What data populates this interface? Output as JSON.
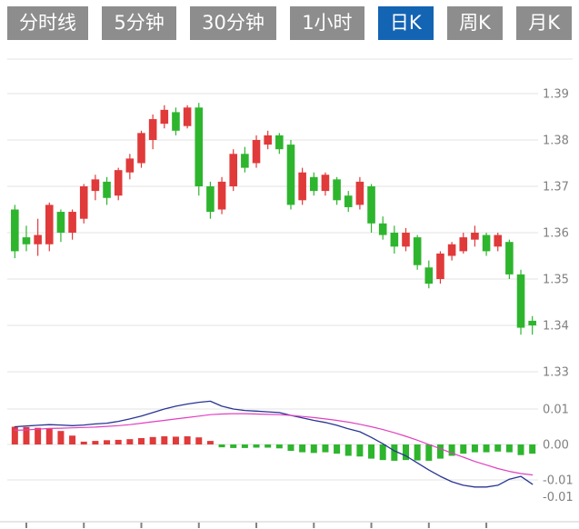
{
  "tabs": {
    "active_index": 4,
    "items": [
      {
        "label": "分时线"
      },
      {
        "label": "5分钟"
      },
      {
        "label": "30分钟"
      },
      {
        "label": "1小时"
      },
      {
        "label": "日K"
      },
      {
        "label": "周K"
      },
      {
        "label": "月K"
      }
    ]
  },
  "colors": {
    "tab_bg": "#8d8d8d",
    "tab_active_bg": "#1464b4",
    "tab_text": "#ffffff",
    "up_candle": "#e03a3a",
    "down_candle": "#2eb52e",
    "dif_line": "#283593",
    "dea_line": "#e040c0",
    "grid_line": "#e3e3e3",
    "axis_line": "#cccccc",
    "axis_text": "#808080",
    "background": "#ffffff"
  },
  "chart_data": {
    "type": "candlestick",
    "title": "",
    "legend": [],
    "layout": {
      "grid": true,
      "price_axis_side": "right",
      "indicator_panel": "MACD"
    },
    "price_axis": {
      "labels": [
        "1.39",
        "1.38",
        "1.37",
        "1.36",
        "1.35",
        "1.34",
        "1.33"
      ],
      "min": 1.33,
      "max": 1.39,
      "step": 0.01
    },
    "candles_ohlc_note": "each entry is [open, high, low, close]; red = close above open, green = close below open",
    "candles": [
      [
        1.365,
        1.366,
        1.3545,
        1.356
      ],
      [
        1.359,
        1.3615,
        1.356,
        1.3575
      ],
      [
        1.3575,
        1.363,
        1.355,
        1.3595
      ],
      [
        1.3575,
        1.3665,
        1.356,
        1.366
      ],
      [
        1.3645,
        1.365,
        1.358,
        1.36
      ],
      [
        1.36,
        1.365,
        1.3585,
        1.3645
      ],
      [
        1.363,
        1.3705,
        1.362,
        1.37
      ],
      [
        1.369,
        1.3725,
        1.367,
        1.3715
      ],
      [
        1.371,
        1.372,
        1.366,
        1.3675
      ],
      [
        1.368,
        1.374,
        1.367,
        1.3735
      ],
      [
        1.373,
        1.377,
        1.3715,
        1.376
      ],
      [
        1.375,
        1.382,
        1.374,
        1.3815
      ],
      [
        1.38,
        1.3855,
        1.378,
        1.3845
      ],
      [
        1.3835,
        1.3875,
        1.3825,
        1.3865
      ],
      [
        1.386,
        1.387,
        1.381,
        1.382
      ],
      [
        1.383,
        1.3875,
        1.3825,
        1.387
      ],
      [
        1.387,
        1.388,
        1.368,
        1.37
      ],
      [
        1.37,
        1.371,
        1.363,
        1.3645
      ],
      [
        1.365,
        1.372,
        1.364,
        1.371
      ],
      [
        1.37,
        1.378,
        1.369,
        1.377
      ],
      [
        1.377,
        1.3785,
        1.373,
        1.374
      ],
      [
        1.375,
        1.381,
        1.374,
        1.38
      ],
      [
        1.379,
        1.382,
        1.378,
        1.381
      ],
      [
        1.381,
        1.3815,
        1.377,
        1.378
      ],
      [
        1.379,
        1.38,
        1.365,
        1.366
      ],
      [
        1.367,
        1.374,
        1.366,
        1.373
      ],
      [
        1.372,
        1.373,
        1.368,
        1.369
      ],
      [
        1.369,
        1.373,
        1.368,
        1.3725
      ],
      [
        1.3715,
        1.372,
        1.366,
        1.367
      ],
      [
        1.368,
        1.369,
        1.3645,
        1.3655
      ],
      [
        1.366,
        1.372,
        1.365,
        1.371
      ],
      [
        1.37,
        1.3705,
        1.36,
        1.362
      ],
      [
        1.362,
        1.3635,
        1.3585,
        1.3595
      ],
      [
        1.36,
        1.3615,
        1.3555,
        1.357
      ],
      [
        1.357,
        1.361,
        1.356,
        1.36
      ],
      [
        1.359,
        1.3595,
        1.352,
        1.353
      ],
      [
        1.3525,
        1.354,
        1.348,
        1.349
      ],
      [
        1.35,
        1.356,
        1.349,
        1.3555
      ],
      [
        1.355,
        1.358,
        1.354,
        1.3575
      ],
      [
        1.356,
        1.36,
        1.3555,
        1.359
      ],
      [
        1.3585,
        1.3615,
        1.357,
        1.36
      ],
      [
        1.3595,
        1.36,
        1.355,
        1.356
      ],
      [
        1.357,
        1.36,
        1.356,
        1.3595
      ],
      [
        1.358,
        1.3585,
        1.35,
        1.351
      ],
      [
        1.351,
        1.352,
        1.338,
        1.3395
      ],
      [
        1.341,
        1.342,
        1.338,
        1.34
      ]
    ],
    "indicator": {
      "name": "MACD",
      "axis_labels": [
        "0.01",
        "0.00",
        "-0.01",
        "-0.01"
      ],
      "histogram": [
        0.005,
        0.0049,
        0.0047,
        0.0044,
        0.0038,
        0.0025,
        0.0008,
        0.001,
        0.0012,
        0.0013,
        0.0015,
        0.0018,
        0.0021,
        0.0023,
        0.0022,
        0.0023,
        0.002,
        0.001,
        -0.0008,
        -0.001,
        -0.001,
        -0.0009,
        -0.0009,
        -0.0011,
        -0.0018,
        -0.0022,
        -0.0024,
        -0.0022,
        -0.0026,
        -0.0032,
        -0.0034,
        -0.004,
        -0.0044,
        -0.0046,
        -0.0044,
        -0.0045,
        -0.0046,
        -0.004,
        -0.0032,
        -0.0026,
        -0.0022,
        -0.0022,
        -0.002,
        -0.0022,
        -0.003,
        -0.0026
      ],
      "dif": [
        0.005,
        0.0052,
        0.0054,
        0.0056,
        0.0055,
        0.0053,
        0.0055,
        0.0058,
        0.006,
        0.0065,
        0.0072,
        0.008,
        0.009,
        0.01,
        0.0108,
        0.0114,
        0.0119,
        0.0122,
        0.0108,
        0.01,
        0.0096,
        0.0094,
        0.0092,
        0.009,
        0.0082,
        0.0075,
        0.0068,
        0.0062,
        0.0054,
        0.0044,
        0.0036,
        0.002,
        0.0002,
        -0.0018,
        -0.0032,
        -0.0052,
        -0.0072,
        -0.009,
        -0.0105,
        -0.0115,
        -0.012,
        -0.012,
        -0.0115,
        -0.0098,
        -0.009,
        -0.0112
      ],
      "dea": [
        0.004,
        0.0041,
        0.0043,
        0.0045,
        0.0046,
        0.0047,
        0.0048,
        0.0049,
        0.0051,
        0.0053,
        0.0056,
        0.006,
        0.0064,
        0.0068,
        0.0072,
        0.0076,
        0.008,
        0.0084,
        0.0086,
        0.0087,
        0.0087,
        0.0086,
        0.0085,
        0.0084,
        0.0082,
        0.0079,
        0.0076,
        0.0072,
        0.0068,
        0.0063,
        0.0057,
        0.005,
        0.0042,
        0.0033,
        0.0023,
        0.0012,
        0.0,
        -0.0012,
        -0.0024,
        -0.0036,
        -0.0048,
        -0.0058,
        -0.0068,
        -0.0076,
        -0.0082,
        -0.0086
      ]
    }
  }
}
